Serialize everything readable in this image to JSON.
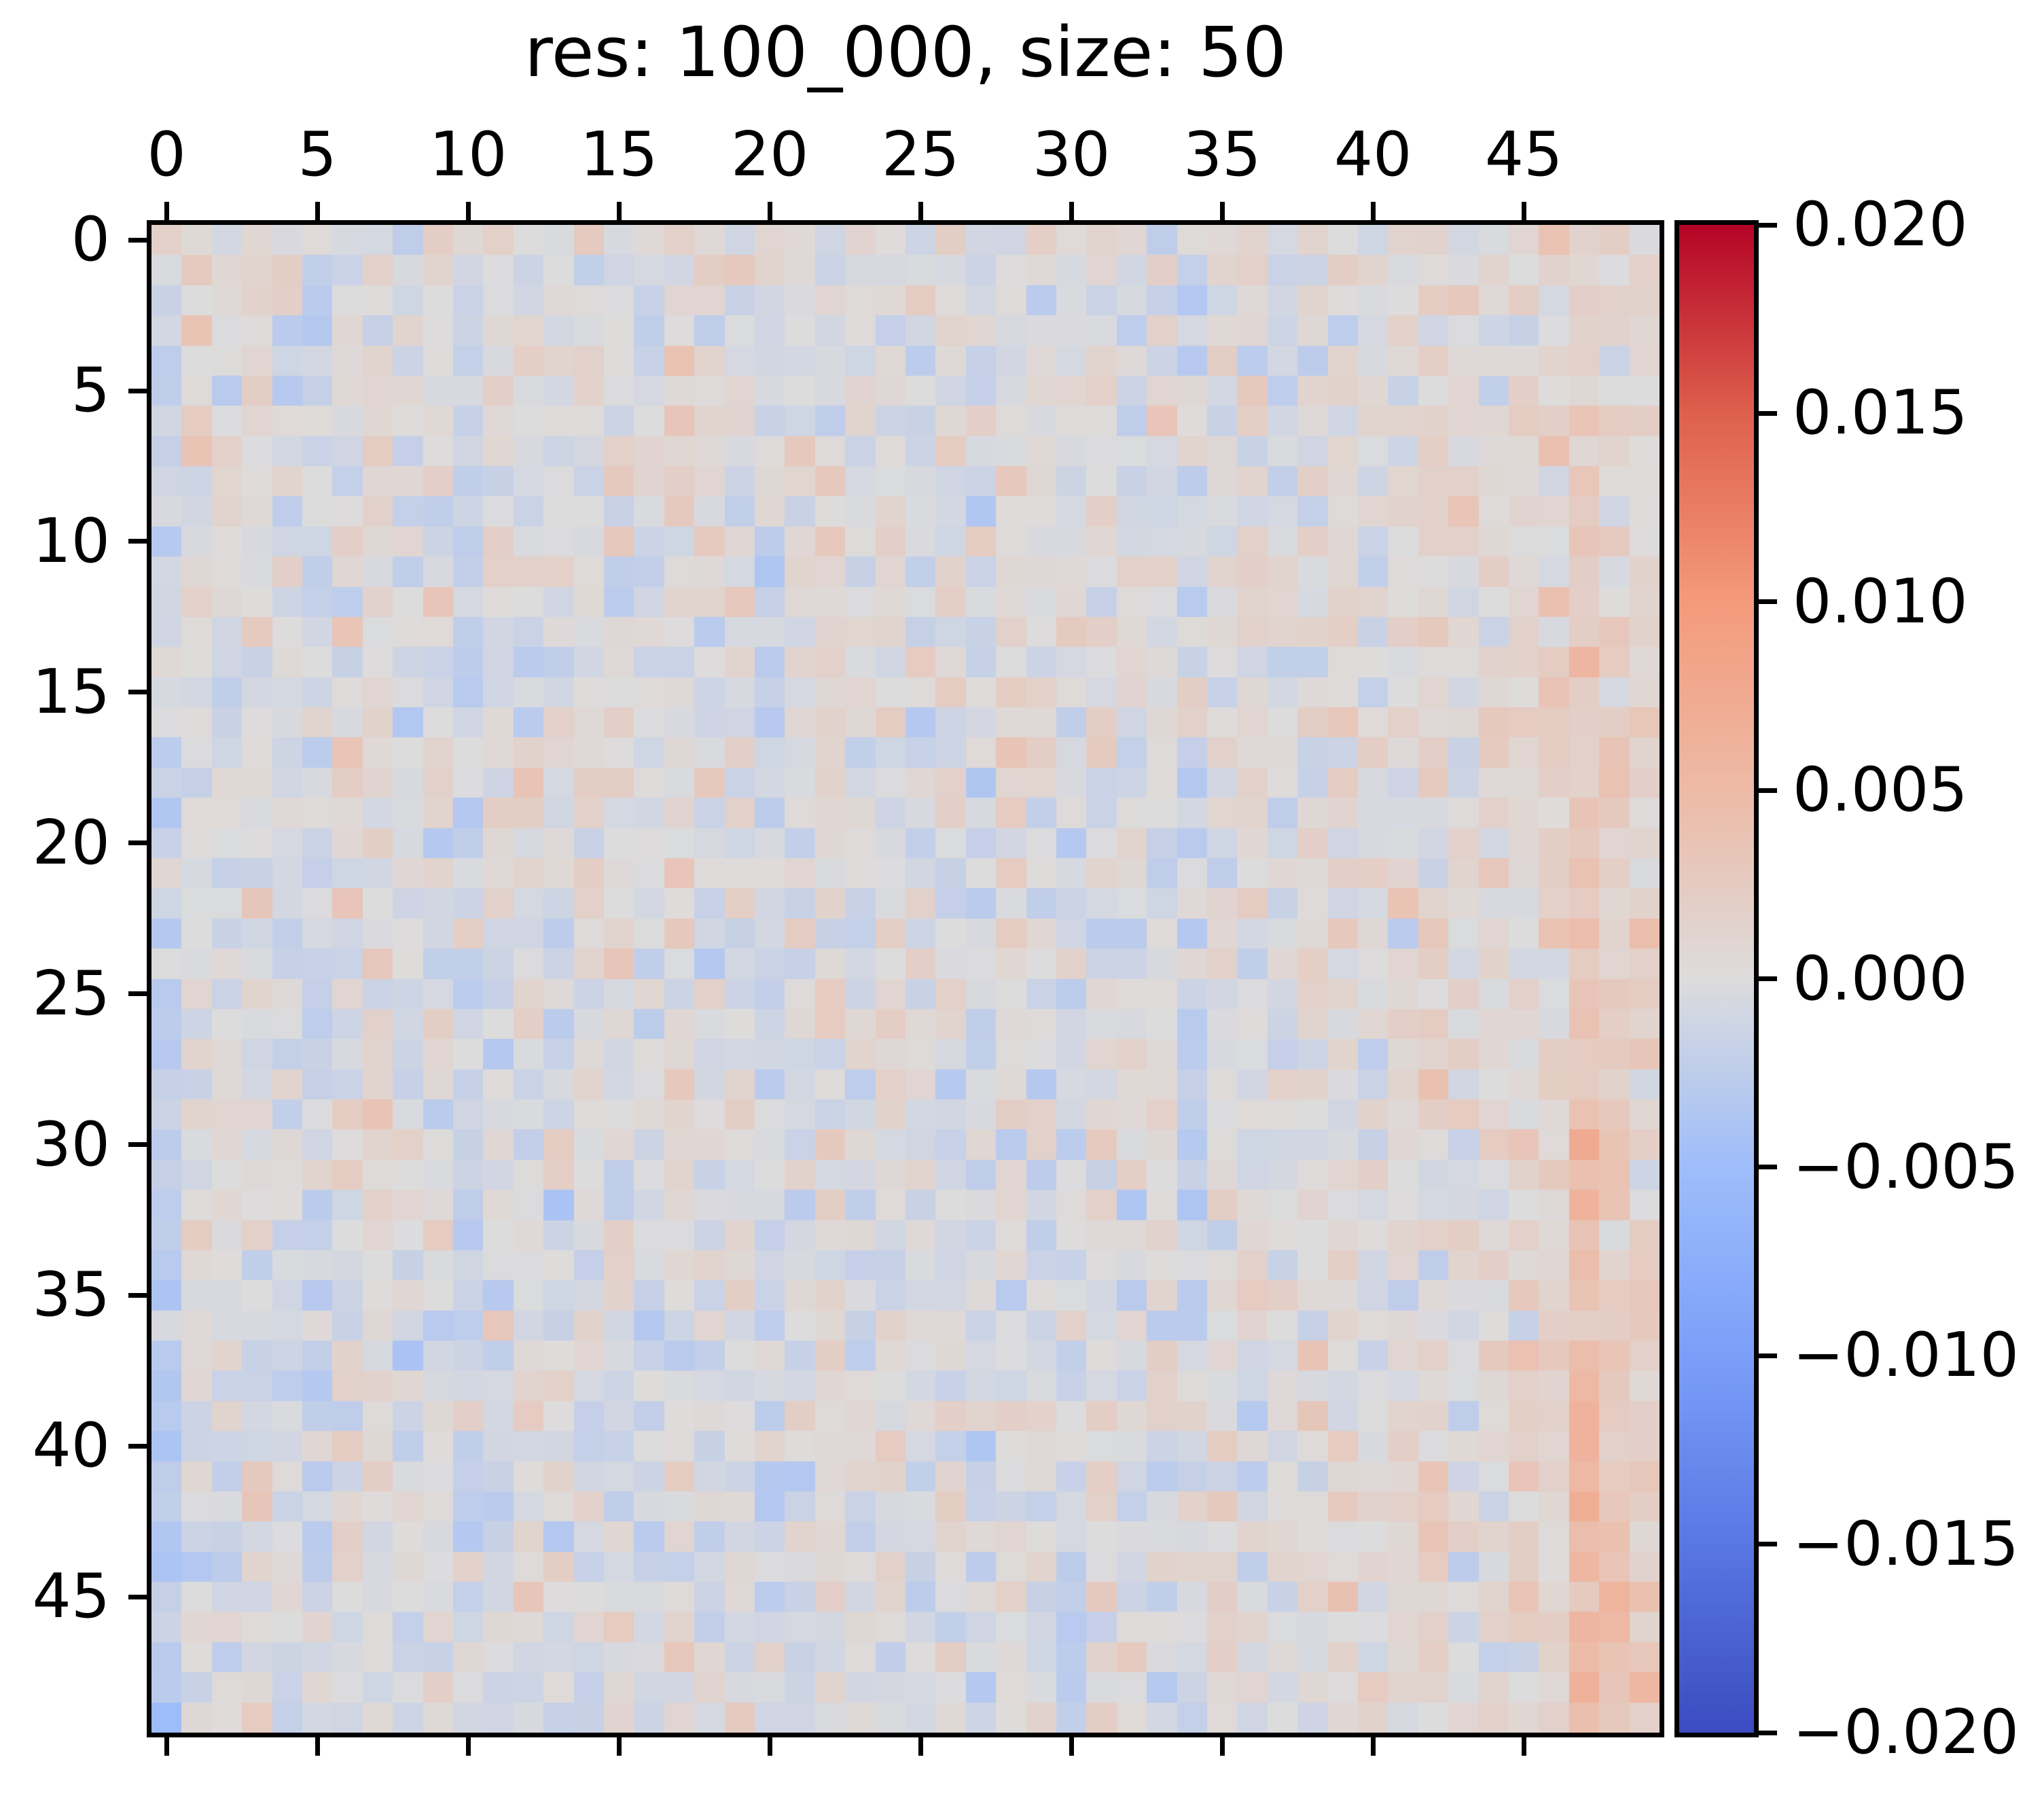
{
  "title": "res: 100_000, size: 50",
  "axes": {
    "x_ticks": [
      "0",
      "5",
      "10",
      "15",
      "20",
      "25",
      "30",
      "35",
      "40",
      "45"
    ],
    "y_ticks": [
      "0",
      "5",
      "10",
      "15",
      "20",
      "25",
      "30",
      "35",
      "40",
      "45"
    ]
  },
  "colorbar": {
    "tick_labels": [
      "0.020",
      "0.015",
      "0.010",
      "0.005",
      "0.000",
      "−0.005",
      "−0.010",
      "−0.015",
      "−0.020"
    ],
    "tick_values": [
      0.02,
      0.015,
      0.01,
      0.005,
      0.0,
      -0.005,
      -0.01,
      -0.015,
      -0.02
    ],
    "vmin": -0.02,
    "vmax": 0.02
  },
  "chart_data": {
    "type": "heatmap",
    "title": "res: 100_000, size: 50",
    "rows": 50,
    "cols": 50,
    "x_tick_values": [
      0,
      5,
      10,
      15,
      20,
      25,
      30,
      35,
      40,
      45
    ],
    "y_tick_values": [
      0,
      5,
      10,
      15,
      20,
      25,
      30,
      35,
      40,
      45
    ],
    "vmin": -0.02,
    "vmax": 0.02,
    "colormap": "coolwarm",
    "colormap_stops": [
      [
        0.0,
        "#3b4cc0"
      ],
      [
        0.125,
        "#5977e3"
      ],
      [
        0.25,
        "#7b9ff9"
      ],
      [
        0.375,
        "#9ebdfa"
      ],
      [
        0.5,
        "#dddcdc"
      ],
      [
        0.625,
        "#edbaa6"
      ],
      [
        0.75,
        "#f49a7b"
      ],
      [
        0.875,
        "#de604d"
      ],
      [
        1.0,
        "#b40426"
      ]
    ],
    "value_model": {
      "description": "50x50 matrix of near-zero noise (values approx -0.005..+0.008 on a -0.02..0.02 scale): column-correlated pale red/blue speckle; left columns drift slightly negative (blue) toward bottom rows, rightmost columns (45-49, esp. 47) drift warm/salmon toward bottom-right corner.",
      "seed": 7,
      "noise_std": 0.0013,
      "noise_clamp": 0.0032,
      "column_bias": [
        -0.0014,
        0.0006,
        0.0004,
        0.0007,
        -0.0003,
        -0.0007,
        0.0004,
        0.0009,
        -0.0004,
        0.0002,
        -0.0008,
        0.0003,
        0.0006,
        -0.0005,
        0.0001,
        0.0005,
        -0.0006,
        0.0007,
        -0.0002,
        0.0004,
        -0.0007,
        0.0002,
        0.0005,
        -0.0004,
        0.0006,
        -0.0001,
        0.0003,
        -0.0007,
        0.0005,
        0.0002,
        -0.0005,
        0.0006,
        -0.0002,
        0.0003,
        -0.0006,
        0.0004,
        0.0001,
        -0.0003,
        0.0005,
        0.0007,
        -0.0002,
        0.0004,
        0.0008,
        0.0002,
        0.0006,
        0.0008,
        0.0006,
        0.0012,
        0.001,
        0.0008
      ],
      "column_row_ramp": [
        -0.0015,
        -0.0008,
        -0.001,
        -0.0008,
        -0.001,
        -0.0012,
        -0.0006,
        -0.0008,
        -0.0006,
        -0.0005,
        -0.0006,
        -0.0005,
        -0.0006,
        -0.0004,
        -0.0005,
        -0.0006,
        -0.0004,
        -0.0005,
        -0.0004,
        -0.0005,
        -0.0006,
        -0.0004,
        -0.0005,
        -0.0004,
        -0.0003,
        -0.0004,
        -0.0003,
        -0.0004,
        -0.0003,
        -0.0003,
        -0.0003,
        -0.0002,
        -0.0003,
        -0.0002,
        -0.0002,
        0.0,
        0.0,
        0.0,
        0.0,
        0.0,
        0.0,
        0.0,
        0.0,
        0.0,
        0.0,
        0.0008,
        0.001,
        0.005,
        0.0028,
        0.0018
      ],
      "observed_value_range": [
        -0.005,
        0.008
      ]
    }
  }
}
